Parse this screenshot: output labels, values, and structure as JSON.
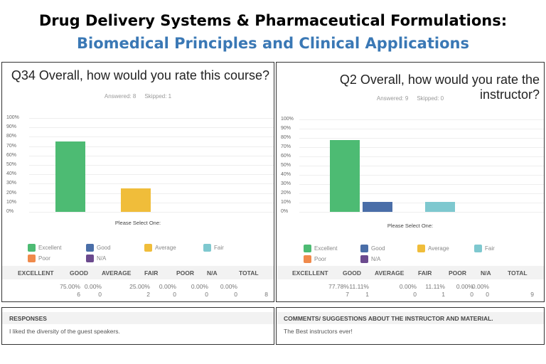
{
  "title": "Drug Delivery Systems & Pharmaceutical Formulations:",
  "subtitle": "Biomedical Principles and Clinical Applications",
  "colors": {
    "Excellent": "#4dbb73",
    "Good": "#4a6ea8",
    "Average": "#f0bd3a",
    "Fair": "#7ec8cf",
    "Poor": "#f08a4b",
    "N/A": "#6b4a8e",
    "subtitle": "#3a78b5"
  },
  "legend": [
    "Excellent",
    "Good",
    "Average",
    "Fair",
    "Poor",
    "N/A"
  ],
  "columns": [
    "EXCELLENT",
    "GOOD",
    "AVERAGE",
    "FAIR",
    "POOR",
    "N/A",
    "TOTAL"
  ],
  "chart_data": [
    {
      "type": "bar",
      "title": "Q34 Overall, how would you rate this course?",
      "answered": "Answered: 8",
      "skipped": "Skipped: 1",
      "xlabel": "Please Select One:",
      "ylim": [
        0,
        100
      ],
      "yticks": [
        "100%",
        "90%",
        "80%",
        "70%",
        "60%",
        "50%",
        "40%",
        "30%",
        "20%",
        "10%",
        "0%"
      ],
      "categories": [
        "Excellent",
        "Good",
        "Average",
        "Fair",
        "Poor",
        "N/A"
      ],
      "values": [
        75,
        0,
        25,
        0,
        0,
        0
      ],
      "percents": [
        "75.00%",
        "0.00%",
        "25.00%",
        "0.00%",
        "0.00%",
        "0.00%"
      ],
      "counts": [
        "6",
        "0",
        "2",
        "0",
        "0",
        "0"
      ],
      "total": "8"
    },
    {
      "type": "bar",
      "title": "Q2 Overall, how would you rate the instructor?",
      "answered": "Answered: 9",
      "skipped": "Skipped: 0",
      "xlabel": "Please Select One:",
      "ylim": [
        0,
        100
      ],
      "yticks": [
        "100%",
        "90%",
        "80%",
        "70%",
        "60%",
        "50%",
        "40%",
        "30%",
        "20%",
        "10%",
        "0%"
      ],
      "categories": [
        "Excellent",
        "Good",
        "Average",
        "Fair",
        "Poor",
        "N/A"
      ],
      "values": [
        77.78,
        11.11,
        0,
        11.11,
        0,
        0
      ],
      "percents": [
        "77.78%",
        "11.11%",
        "0.00%",
        "11.11%",
        "0.00%",
        "0.00%"
      ],
      "counts": [
        "7",
        "1",
        "0",
        "1",
        "0",
        "0"
      ],
      "total": "9"
    }
  ],
  "responses": [
    {
      "header": "RESPONSES",
      "text": "I liked the diversity of the guest speakers."
    },
    {
      "header": "COMMENTS/ SUGGESTIONS ABOUT THE INSTRUCTOR AND MATERIAL.",
      "text": "The Best instructors ever!"
    }
  ]
}
